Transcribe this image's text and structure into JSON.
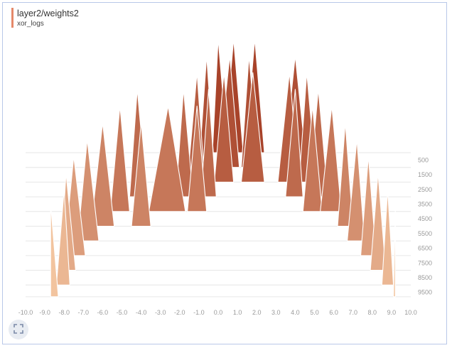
{
  "header": {
    "title": "layer2/weights2",
    "run": "xor_logs"
  },
  "controls": {
    "fullscreen_icon": "fullscreen-icon"
  },
  "colors": {
    "accent": "#e5896a",
    "back_fill": "#a8432a",
    "front_fill": "#f2c49f",
    "grid": "#e6e6e6",
    "tick": "#9a9a9a"
  },
  "chart_data": {
    "type": "histogram",
    "mode": "offset",
    "title": "layer2/weights2",
    "legend": "xor_logs",
    "x_ticks": [
      "-10.0",
      "-9.0",
      "-8.0",
      "-7.0",
      "-6.0",
      "-5.0",
      "-4.0",
      "-3.0",
      "-2.0",
      "-1.0",
      "0.0",
      "1.0",
      "2.0",
      "3.0",
      "4.0",
      "5.0",
      "6.0",
      "7.0",
      "8.0",
      "9.0",
      "10.0"
    ],
    "xlim": [
      -10,
      10
    ],
    "y_ticks": [
      "500",
      "1500",
      "2500",
      "3500",
      "4500",
      "5500",
      "6500",
      "7500",
      "8500",
      "9500"
    ],
    "steps": [
      500,
      1500,
      2500,
      3500,
      4500,
      5500,
      6500,
      7500,
      8500,
      9500
    ],
    "step_range": [
      0,
      10000
    ],
    "series": [
      {
        "step": 0,
        "bins": [
          [
            -0.3,
            0.0,
            0.5
          ],
          [
            0.3,
            0.8,
            1.3
          ],
          [
            1.4,
            1.9,
            2.4
          ]
        ]
      },
      {
        "step": 1000,
        "bins": [
          [
            -1.0,
            -0.6,
            -0.2
          ],
          [
            0.0,
            0.6,
            1.1
          ],
          [
            1.2,
            1.6,
            2.1
          ],
          [
            3.4,
            4.0,
            4.6
          ]
        ]
      },
      {
        "step": 2000,
        "bins": [
          [
            -1.6,
            -1.1,
            -0.7
          ],
          [
            -0.2,
            0.3,
            0.8
          ],
          [
            1.2,
            1.8,
            2.4
          ],
          [
            3.1,
            3.7,
            4.2
          ],
          [
            4.2,
            4.6,
            5.1
          ]
        ]
      },
      {
        "step": 3000,
        "bins": [
          [
            -4.6,
            -4.2,
            -3.7
          ],
          [
            -2.2,
            -1.8,
            -1.3
          ],
          [
            -0.9,
            -0.5,
            -0.1
          ],
          [
            3.5,
            4.0,
            4.4
          ],
          [
            4.7,
            5.2,
            5.7
          ]
        ]
      },
      {
        "step": 4000,
        "bins": [
          [
            -5.6,
            -5.1,
            -4.6
          ],
          [
            -3.6,
            -2.6,
            -1.7
          ],
          [
            -1.6,
            -1.1,
            -0.6
          ],
          [
            4.4,
            4.9,
            5.4
          ],
          [
            5.3,
            5.9,
            6.4
          ]
        ]
      },
      {
        "step": 5000,
        "bins": [
          [
            -6.6,
            -6.0,
            -5.4
          ],
          [
            -4.5,
            -4.0,
            -3.5
          ],
          [
            6.2,
            6.6,
            7.0
          ]
        ]
      },
      {
        "step": 6000,
        "bins": [
          [
            -7.3,
            -6.8,
            -6.2
          ],
          [
            6.7,
            7.2,
            7.6
          ]
        ]
      },
      {
        "step": 7000,
        "bins": [
          [
            -8.0,
            -7.5,
            -6.9
          ],
          [
            7.4,
            7.8,
            8.2
          ]
        ]
      },
      {
        "step": 8000,
        "bins": [
          [
            -8.2,
            -7.9,
            -7.4
          ],
          [
            7.9,
            8.3,
            8.7
          ]
        ]
      },
      {
        "step": 9000,
        "bins": [
          [
            -8.4,
            -8.0,
            -7.7
          ],
          [
            8.5,
            8.8,
            9.1
          ]
        ]
      },
      {
        "step": 9800,
        "bins": [
          [
            -8.7,
            -8.7,
            -8.3
          ],
          [
            9.1,
            9.2,
            9.2
          ]
        ]
      }
    ]
  }
}
